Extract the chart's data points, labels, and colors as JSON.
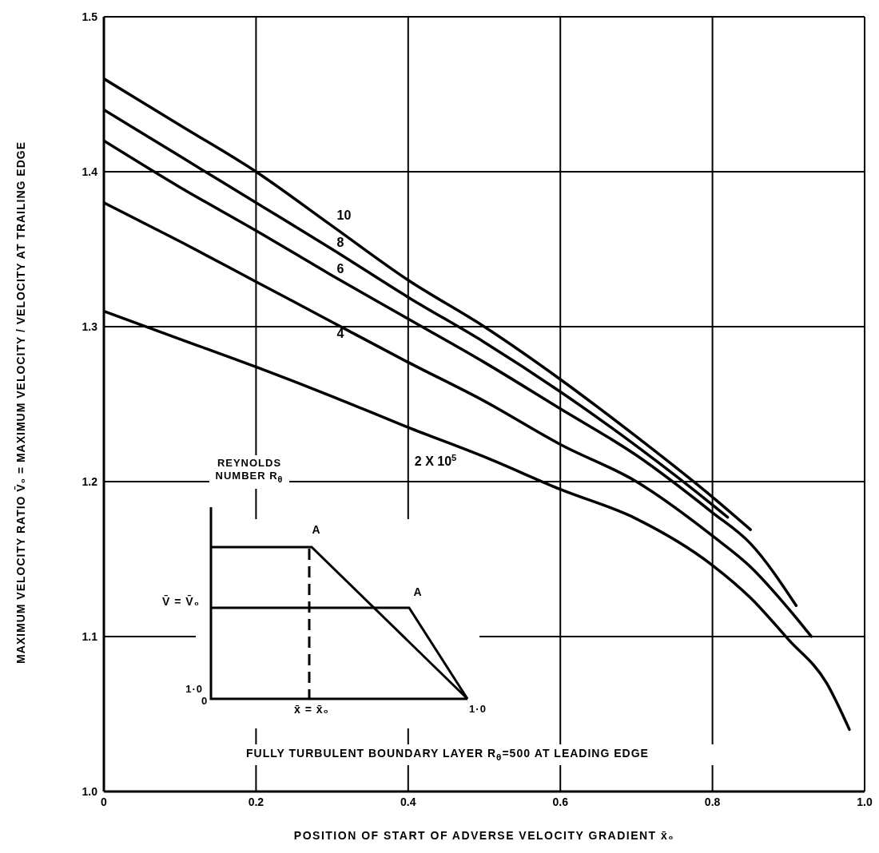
{
  "chart_data": {
    "type": "line",
    "xlabel": "POSITION OF START OF ADVERSE VELOCITY GRADIENT x̄₀",
    "ylabel": "MAXIMUM VELOCITY RATIO V̄₀ = MAXIMUM VELOCITY / VELOCITY AT TRAILING EDGE",
    "xlim": [
      0,
      1.0
    ],
    "ylim": [
      1.0,
      1.5
    ],
    "xticks": [
      0,
      0.2,
      0.4,
      0.6,
      0.8,
      {
        "value": 1.0,
        "label": "1.0"
      }
    ],
    "yticks": [
      {
        "value": 1.0,
        "label": "1.0"
      },
      1.1,
      1.2,
      1.3,
      1.4,
      1.5
    ],
    "grid": true,
    "marker": "none",
    "line_style": "solid",
    "annotations": [
      "REYNOLDS NUMBER R$_{θ}$",
      "FULLY TURBULENT BOUNDARY LAYER R$_{θ}$=500 AT LEADING EDGE",
      "A",
      "A",
      "V̄ = V̄₀",
      "1·0",
      "0",
      "1·0",
      "x̄ = x̄₀"
    ],
    "series": [
      {
        "name": "10",
        "color": "#000000",
        "x": [
          0,
          0.1,
          0.2,
          0.3,
          0.4,
          0.5,
          0.6,
          0.7,
          0.8,
          0.85
        ],
        "values": [
          1.46,
          1.43,
          1.4,
          1.365,
          1.33,
          1.3,
          1.266,
          1.229,
          1.19,
          1.169
        ]
      },
      {
        "name": "8",
        "color": "#000000",
        "x": [
          0,
          0.1,
          0.2,
          0.3,
          0.4,
          0.5,
          0.6,
          0.7,
          0.8,
          0.82
        ],
        "values": [
          1.44,
          1.41,
          1.38,
          1.35,
          1.319,
          1.29,
          1.258,
          1.223,
          1.185,
          1.177
        ]
      },
      {
        "name": "6",
        "color": "#000000",
        "x": [
          0,
          0.1,
          0.2,
          0.3,
          0.4,
          0.5,
          0.6,
          0.7,
          0.8,
          0.85,
          0.91
        ],
        "values": [
          1.42,
          1.39,
          1.362,
          1.333,
          1.305,
          1.277,
          1.247,
          1.217,
          1.18,
          1.16,
          1.12
        ]
      },
      {
        "name": "4",
        "color": "#000000",
        "x": [
          0,
          0.1,
          0.2,
          0.3,
          0.4,
          0.5,
          0.6,
          0.7,
          0.8,
          0.85,
          0.9,
          0.93
        ],
        "values": [
          1.38,
          1.355,
          1.329,
          1.303,
          1.277,
          1.252,
          1.224,
          1.2,
          1.165,
          1.145,
          1.118,
          1.1
        ]
      },
      {
        "name": "2 X 10$^{5}$",
        "color": "#000000",
        "x": [
          0,
          0.1,
          0.2,
          0.3,
          0.4,
          0.5,
          0.6,
          0.7,
          0.8,
          0.85,
          0.9,
          0.95,
          0.98
        ],
        "values": [
          1.31,
          1.292,
          1.274,
          1.255,
          1.235,
          1.216,
          1.195,
          1.176,
          1.146,
          1.125,
          1.098,
          1.07,
          1.04
        ]
      }
    ]
  }
}
